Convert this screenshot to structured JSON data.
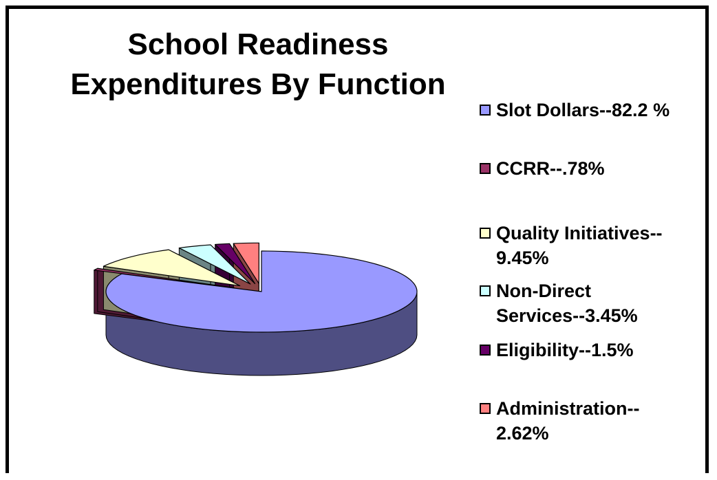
{
  "chart_data": {
    "type": "pie",
    "title_lines": [
      "School Readiness",
      "Expenditures By Function"
    ],
    "three_d": true,
    "legend_position": "right",
    "slices": [
      {
        "label_lines": [
          "Slot Dollars--82.2 %"
        ],
        "value": 82.2,
        "color": "#9999FF",
        "side_color": "#4E4E82",
        "exploded": false
      },
      {
        "label_lines": [
          "CCRR--.78%"
        ],
        "value": 0.78,
        "color": "#993366",
        "side_color": "#4F1A35",
        "exploded": true
      },
      {
        "label_lines": [
          "Quality Initiatives--",
          "9.45%"
        ],
        "value": 9.45,
        "color": "#FFFFCC",
        "side_color": "#8A8A6E",
        "exploded": true
      },
      {
        "label_lines": [
          "Non-Direct",
          "Services--3.45%"
        ],
        "value": 3.45,
        "color": "#CCFFFF",
        "side_color": "#6A8585",
        "exploded": true
      },
      {
        "label_lines": [
          "Eligibility--1.5%"
        ],
        "value": 1.5,
        "color": "#660066",
        "side_color": "#360036",
        "exploded": true
      },
      {
        "label_lines": [
          "Administration--",
          "2.62%"
        ],
        "value": 2.62,
        "color": "#FF8080",
        "side_color": "#8A4545",
        "exploded": true
      }
    ]
  }
}
